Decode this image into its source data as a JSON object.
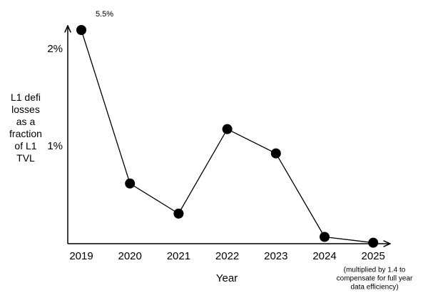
{
  "chart_data": {
    "type": "line",
    "y_label_lines": [
      "L1 defi",
      "losses",
      "as a",
      "fraction",
      "of L1",
      "TVL"
    ],
    "x_label": "Year",
    "categories": [
      "2019",
      "2020",
      "2021",
      "2022",
      "2023",
      "2024",
      "2025"
    ],
    "values": [
      5.5,
      0.62,
      0.31,
      1.18,
      0.93,
      0.07,
      0.01
    ],
    "value_labels": [
      "5.5%",
      null,
      null,
      null,
      null,
      null,
      null
    ],
    "annotation_lines": [
      "(multiplied by 1.4 to",
      "compensate for full year",
      "data efficiency)"
    ],
    "color": "#000000",
    "ylim": [
      0,
      2.23
    ],
    "yticks": [
      {
        "value": 1,
        "label": "1%"
      },
      {
        "value": 2,
        "label": "2%"
      }
    ],
    "grid": false
  }
}
